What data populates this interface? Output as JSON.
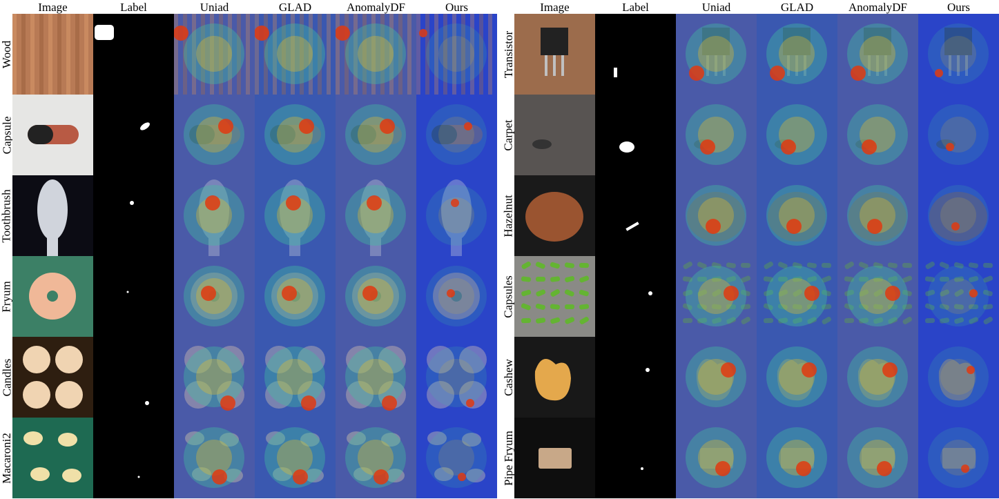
{
  "left_panel": {
    "columns": [
      "Image",
      "Label",
      "Uniad",
      "GLAD",
      "AnomalyDF",
      "Ours"
    ],
    "rows": [
      {
        "label": "Wood",
        "object": "wood",
        "bg": "#b87a55",
        "obj": "#c98a60"
      },
      {
        "label": "Capsule",
        "object": "capsule",
        "bg": "#e6e6e4",
        "obj": "#b85a44"
      },
      {
        "label": "Toothbrush",
        "object": "toothbrush",
        "bg": "#0c0c14",
        "obj": "#d0d4dc"
      },
      {
        "label": "Fryum",
        "object": "wheel",
        "bg": "#3c8066",
        "obj": "#f0b898"
      },
      {
        "label": "Candles",
        "object": "candles",
        "bg": "#2e1e10",
        "obj": "#f0d4b2"
      },
      {
        "label": "Macaroni2",
        "object": "macaroni",
        "bg": "#1e6a52",
        "obj": "#f0e0a8"
      }
    ]
  },
  "right_panel": {
    "columns": [
      "Image",
      "Label",
      "Uniad",
      "GLAD",
      "AnomalyDF",
      "Ours"
    ],
    "rows": [
      {
        "label": "Transistor",
        "object": "transistor",
        "bg": "#9c6c4c",
        "obj": "#222222"
      },
      {
        "label": "Carpet",
        "object": "carpet",
        "bg": "#585452",
        "obj": "#333333"
      },
      {
        "label": "Hazelnut",
        "object": "hazelnut",
        "bg": "#1a1a1a",
        "obj": "#9a5430"
      },
      {
        "label": "Capsules",
        "object": "capsules",
        "bg": "#8a8a86",
        "obj": "#64b432"
      },
      {
        "label": "Cashew",
        "object": "cashew",
        "bg": "#181818",
        "obj": "#e4a84c"
      },
      {
        "label": "Pipe Fryum",
        "object": "pipe",
        "bg": "#0e0e0e",
        "obj": "#c8a888"
      }
    ]
  },
  "heatmap_colors": {
    "uniad": "#4a5aa8",
    "glad": "#3a58b0",
    "anomalydf": "#4a5aa8",
    "ours": "#2a44c8",
    "hot": "#e03a10",
    "warm": "#f0c020",
    "mid": "#40c0a0"
  }
}
